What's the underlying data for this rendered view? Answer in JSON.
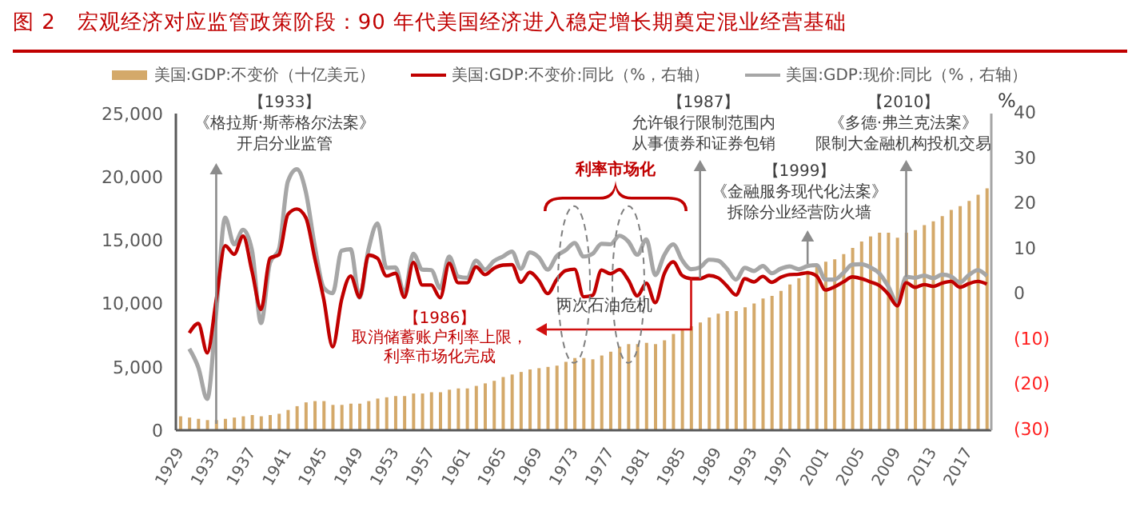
{
  "chart_data": {
    "type": "bar",
    "title": "图 2　宏观经济对应监管政策阶段：90 年代美国经济进入稳定增长期奠定混业经营基础",
    "categories": [
      "1929",
      null,
      null,
      null,
      "1933",
      null,
      null,
      null,
      "1937",
      null,
      null,
      null,
      "1941",
      null,
      null,
      null,
      "1945",
      null,
      null,
      null,
      "1949",
      null,
      null,
      null,
      "1953",
      null,
      null,
      null,
      "1957",
      null,
      null,
      null,
      "1961",
      null,
      null,
      null,
      "1965",
      null,
      null,
      null,
      "1969",
      null,
      null,
      null,
      "1973",
      null,
      null,
      null,
      "1977",
      null,
      null,
      null,
      "1981",
      null,
      null,
      null,
      "1985",
      null,
      null,
      null,
      "1989",
      null,
      null,
      null,
      "1993",
      null,
      null,
      null,
      "1997",
      null,
      null,
      null,
      "2001",
      null,
      null,
      null,
      "2005",
      null,
      null,
      null,
      "2009",
      null,
      null,
      null,
      "2013",
      null,
      null,
      null,
      "2017",
      null,
      null
    ],
    "series": [
      {
        "name": "美国:GDP:不变价（十亿美元）",
        "color": "#d4a96a",
        "values": [
          1100,
          1000,
          900,
          800,
          800,
          900,
          1000,
          1100,
          1200,
          1100,
          1200,
          1300,
          1600,
          1900,
          2200,
          2300,
          2300,
          2000,
          2000,
          2100,
          2100,
          2300,
          2500,
          2600,
          2700,
          2700,
          2900,
          2900,
          3000,
          3000,
          3200,
          3300,
          3300,
          3500,
          3700,
          3900,
          4200,
          4400,
          4600,
          4800,
          4900,
          5000,
          5100,
          5400,
          5700,
          5700,
          5600,
          5900,
          6200,
          6600,
          6800,
          6800,
          6900,
          6800,
          7100,
          7600,
          8000,
          8200,
          8500,
          8900,
          9200,
          9400,
          9400,
          9700,
          10000,
          10400,
          10600,
          11000,
          11500,
          12000,
          12600,
          13100,
          13300,
          13500,
          13900,
          14400,
          14900,
          15300,
          15600,
          15600,
          15200,
          15600,
          15800,
          16200,
          16500,
          16900,
          17400,
          17700,
          18100,
          18600,
          19100
        ]
      },
      {
        "name": "美国:GDP:不变价:同比（%，右轴）",
        "type": "line",
        "axis": "y2",
        "color": "#c00000",
        "values": [
          null,
          -8.5,
          -6.4,
          -12.9,
          -1.2,
          10.8,
          8.9,
          12.9,
          5.1,
          -3.3,
          8.0,
          8.8,
          17.7,
          18.9,
          17.0,
          8.0,
          -1.0,
          -11.6,
          -1.1,
          4.1,
          -0.6,
          8.7,
          8.0,
          4.1,
          4.7,
          -0.6,
          7.1,
          2.1,
          2.1,
          -0.7,
          6.9,
          2.6,
          2.6,
          6.1,
          4.4,
          5.8,
          6.5,
          6.6,
          2.7,
          4.9,
          3.1,
          0.2,
          3.3,
          5.3,
          5.6,
          -0.5,
          -0.2,
          5.4,
          4.6,
          5.5,
          3.2,
          -0.3,
          2.5,
          -1.8,
          4.6,
          7.2,
          4.2,
          3.5,
          3.5,
          4.2,
          3.7,
          1.9,
          -0.1,
          3.5,
          2.8,
          4.0,
          2.7,
          3.8,
          4.4,
          4.5,
          4.8,
          4.1,
          1.0,
          1.7,
          2.8,
          3.9,
          3.5,
          2.8,
          2.0,
          0.1,
          -2.5,
          2.6,
          1.6,
          2.2,
          1.8,
          2.5,
          2.9,
          1.6,
          2.4,
          2.9,
          2.3
        ]
      },
      {
        "name": "美国:GDP:现价:同比（%，右轴）",
        "type": "line",
        "axis": "y2",
        "color": "#a6a6a6",
        "values": [
          null,
          -12.0,
          -16.1,
          -23.1,
          -4.0,
          17.0,
          11.1,
          14.3,
          9.7,
          -6.3,
          7.0,
          10.0,
          25.0,
          27.7,
          22.7,
          10.7,
          1.5,
          0.3,
          9.7,
          10.0,
          -0.7,
          10.0,
          15.7,
          5.9,
          6.0,
          0.3,
          9.0,
          5.5,
          5.4,
          1.4,
          8.4,
          4.0,
          3.7,
          7.5,
          5.5,
          7.4,
          8.4,
          9.5,
          5.7,
          9.3,
          8.2,
          5.5,
          8.5,
          9.8,
          11.4,
          8.4,
          9.0,
          11.2,
          11.1,
          13.0,
          11.7,
          8.8,
          12.2,
          4.3,
          8.7,
          11.1,
          7.6,
          5.6,
          6.0,
          7.7,
          7.5,
          5.7,
          3.3,
          5.9,
          5.2,
          6.3,
          4.7,
          5.7,
          6.2,
          5.6,
          6.3,
          6.5,
          3.3,
          3.3,
          4.8,
          6.6,
          6.7,
          6.0,
          4.7,
          1.8,
          -1.8,
          3.9,
          3.7,
          4.2,
          3.6,
          4.4,
          4.0,
          2.7,
          4.3,
          5.4,
          4.1
        ]
      }
    ],
    "ylim": [
      0,
      25000
    ],
    "yticks": [
      0,
      {
        "value": 5000,
        "label": "5,000"
      },
      {
        "value": 10000,
        "label": "10,000"
      },
      {
        "value": 15000,
        "label": "15,000"
      },
      {
        "value": 20000,
        "label": "20,000"
      },
      {
        "value": 25000,
        "label": "25,000"
      }
    ],
    "y2lim": [
      -30,
      40
    ],
    "y2ticks": [
      {
        "value": -30,
        "label": "(30)"
      },
      {
        "value": -20,
        "label": "(20)"
      },
      {
        "value": -10,
        "label": "(10)"
      },
      0,
      10,
      20,
      30,
      40
    ],
    "y2label": "%",
    "legend": "top",
    "marker": "none",
    "annotations": [
      "【1933】《格拉斯·斯蒂格尔法案》开启分业监管",
      {
        "text": "【1987】允许银行限制范围内从事债券和证券包销",
        "y": 12000
      },
      {
        "text": "【2010】《多德·弗兰克法案》限制大金融机构投机交易",
        "y": 12100
      },
      "利率市场化",
      "【1999】《金融服务现代化法案》拆除分业经营防火墙",
      {
        "text": "两次石油危机",
        "y": 11500
      },
      {
        "text": "【1986】取消储蓄账户利率上限，利率市场化完成",
        "y": 12000
      }
    ]
  }
}
